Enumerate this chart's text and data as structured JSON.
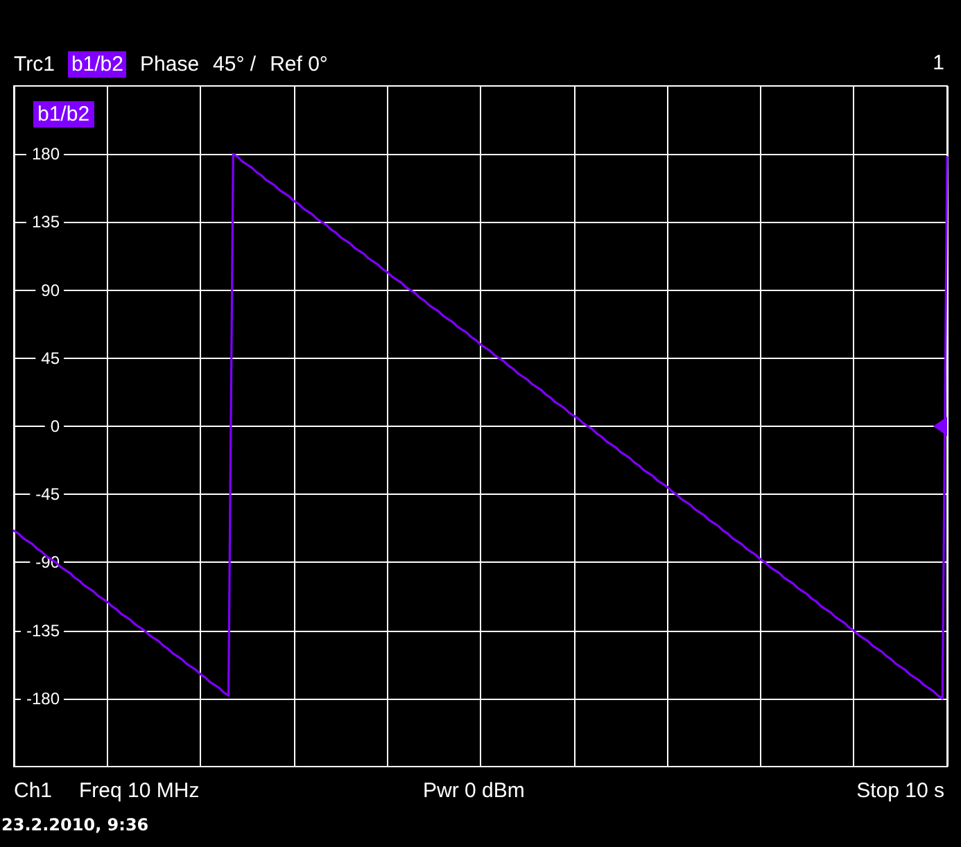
{
  "chart_data": {
    "type": "line",
    "ylabel": "Phase",
    "annotations": [
      "Trc1",
      "45° /",
      "Ref 0°",
      "1",
      "Ch1",
      "Freq 10 MHz",
      "Pwr 0 dBm",
      "Stop 10 s",
      "23.2.2010, 9:36"
    ],
    "categories": [
      null,
      null,
      null,
      null,
      null,
      null,
      null,
      null,
      null,
      null,
      null,
      null,
      null,
      null,
      null,
      null,
      null,
      null,
      null,
      null,
      null,
      null,
      null,
      null,
      null,
      null,
      null,
      null,
      null,
      null,
      null,
      null,
      null,
      null,
      null,
      null,
      null,
      null,
      null,
      null,
      null,
      null,
      null,
      null,
      null,
      null,
      null,
      null,
      null,
      null,
      null,
      null,
      null,
      null,
      null,
      null,
      null,
      null,
      null,
      null,
      null,
      null,
      null,
      null,
      null,
      null,
      null,
      null,
      null,
      null,
      null,
      null,
      null,
      null,
      null,
      null,
      null,
      null,
      null,
      null,
      null,
      null,
      null,
      null,
      null,
      null,
      null,
      null,
      null,
      null,
      null,
      null,
      null,
      null,
      null,
      null,
      null,
      null,
      null,
      null,
      null,
      null,
      null,
      null,
      null,
      null,
      null,
      null,
      null,
      null,
      null,
      null,
      null,
      null,
      null,
      null,
      null,
      null,
      null,
      null,
      null,
      null,
      null,
      null,
      null,
      null,
      null,
      null,
      null,
      null,
      null,
      null,
      null,
      null,
      null,
      null,
      null,
      null,
      null,
      null,
      null,
      null,
      null,
      null,
      null,
      null,
      null,
      null,
      null,
      null,
      null,
      null,
      null,
      null,
      null,
      null,
      null,
      null,
      null,
      null,
      null,
      null,
      null,
      null,
      null,
      null,
      null,
      null,
      null,
      null,
      null,
      null,
      null,
      null,
      null,
      null,
      null,
      null,
      null,
      null,
      null,
      null,
      null,
      null,
      null,
      null,
      null,
      null,
      null,
      null,
      null,
      null,
      null,
      null,
      null,
      null,
      null,
      null,
      null,
      null,
      null
    ],
    "series": [
      {
        "name": "b1/b2",
        "color": "#7f00ff",
        "values": [
          -69,
          -71,
          -74,
          -76,
          -78,
          -81,
          -83,
          -86,
          -88,
          -90,
          -93,
          -95,
          -97,
          -100,
          -102,
          -105,
          -107,
          -109,
          -112,
          -114,
          -116,
          -119,
          -121,
          -124,
          -126,
          -128,
          -131,
          -133,
          -135,
          -138,
          -140,
          -142,
          -145,
          -147,
          -150,
          -152,
          -154,
          -157,
          -159,
          -161,
          -164,
          -166,
          -169,
          -171,
          -173,
          -176,
          -178,
          180,
          178,
          175,
          173,
          171,
          168,
          166,
          163,
          161,
          159,
          156,
          154,
          152,
          149,
          147,
          144,
          142,
          140,
          137,
          135,
          133,
          130,
          128,
          125,
          123,
          121,
          118,
          116,
          114,
          111,
          109,
          107,
          104,
          102,
          99,
          97,
          95,
          92,
          90,
          88,
          85,
          83,
          80,
          78,
          76,
          73,
          71,
          69,
          66,
          64,
          62,
          59,
          57,
          54,
          52,
          50,
          47,
          45,
          43,
          40,
          38,
          35,
          33,
          31,
          28,
          26,
          24,
          21,
          19,
          16,
          14,
          12,
          9,
          7,
          5,
          2,
          0,
          -2,
          -5,
          -7,
          -10,
          -12,
          -14,
          -17,
          -19,
          -21,
          -24,
          -26,
          -29,
          -31,
          -33,
          -36,
          -38,
          -40,
          -43,
          -45,
          -48,
          -50,
          -52,
          -55,
          -57,
          -59,
          -62,
          -64,
          -66,
          -69,
          -71,
          -74,
          -76,
          -78,
          -81,
          -83,
          -85,
          -88,
          -90,
          -93,
          -95,
          -97,
          -100,
          -102,
          -104,
          -107,
          -109,
          -111,
          -114,
          -116,
          -119,
          -121,
          -123,
          -126,
          -128,
          -130,
          -133,
          -135,
          -138,
          -140,
          -142,
          -145,
          -147,
          -149,
          -152,
          -154,
          -157,
          -159,
          -161,
          -164,
          -166,
          -168,
          -171,
          -173,
          -175,
          -178,
          -180,
          178
        ]
      }
    ],
    "ylim": [
      -225,
      225
    ],
    "yticks": [
      -180,
      -135,
      -90,
      -45,
      0,
      45,
      90,
      135,
      180
    ],
    "tick_labels": "y",
    "grid": true,
    "line_style": "solid"
  }
}
